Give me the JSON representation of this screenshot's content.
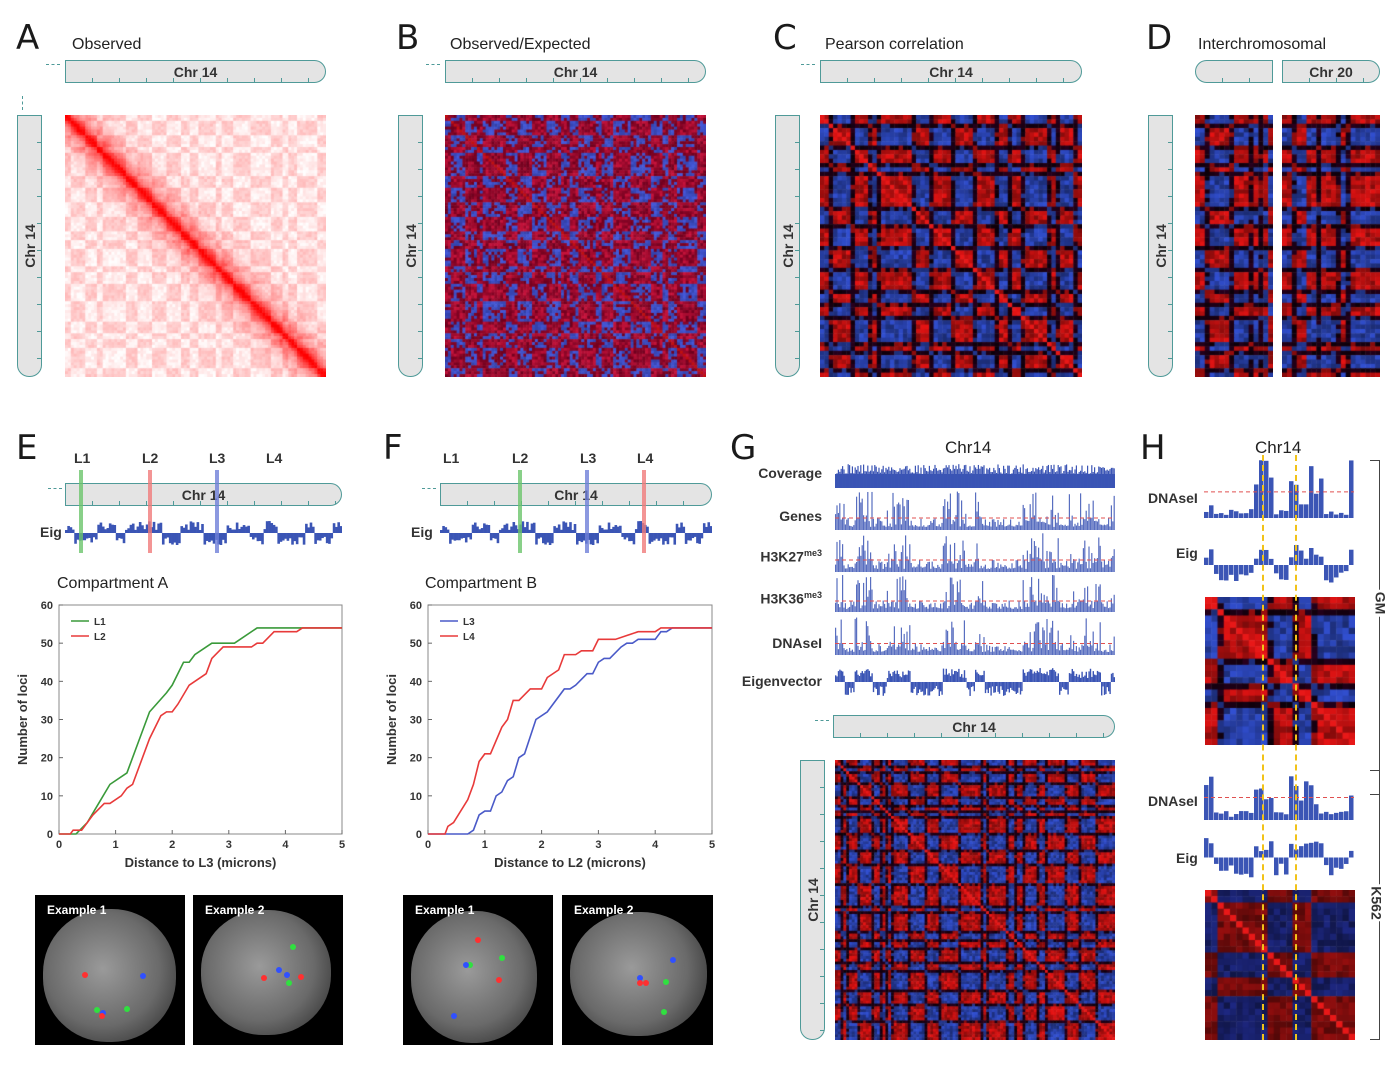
{
  "panels": {
    "A": {
      "letter": "A",
      "title": "Observed",
      "chr_h": "Chr 14",
      "chr_v": "Chr 14"
    },
    "B": {
      "letter": "B",
      "title": "Observed/Expected",
      "chr_h": "Chr 14",
      "chr_v": "Chr 14"
    },
    "C": {
      "letter": "C",
      "title": "Pearson correlation",
      "chr_h": "Chr 14",
      "chr_v": "Chr 14"
    },
    "D": {
      "letter": "D",
      "title": "Interchromosomal",
      "chr_h": "Chr 20",
      "chr_v": "Chr 14"
    },
    "E": {
      "letter": "E",
      "loci": [
        "L1",
        "L2",
        "L3",
        "L4"
      ],
      "chr_h": "Chr 14",
      "eig_label": "Eig",
      "subtitle": "Compartment A",
      "examples": [
        "Example 1",
        "Example 2"
      ]
    },
    "F": {
      "letter": "F",
      "loci": [
        "L1",
        "L2",
        "L3",
        "L4"
      ],
      "chr_h": "Chr 14",
      "eig_label": "Eig",
      "subtitle": "Compartment B",
      "examples": [
        "Example 1",
        "Example 2"
      ]
    },
    "G": {
      "letter": "G",
      "title": "Chr14",
      "tracks": [
        "Coverage",
        "Genes",
        "H3K27",
        "H3K36",
        "DNAseI",
        "Eigenvector"
      ],
      "superscript": "me3",
      "chr_h": "Chr 14",
      "chr_v": "Chr 14"
    },
    "H": {
      "letter": "H",
      "title": "Chr14",
      "track_labels": [
        "DNAseI",
        "Eig",
        "DNAseI",
        "Eig"
      ],
      "cell_lines": [
        "GM",
        "K562"
      ]
    }
  },
  "colors": {
    "locus_green": "#6cc46c",
    "locus_red": "#f07a7a",
    "locus_blue": "#6f7fd8",
    "track_blue": "#3b55b5",
    "heat_red": "#e01818",
    "heat_blue": "#3a5ad0",
    "highlight_yellow": "#f2c318",
    "chr_outline": "#4f9a98"
  },
  "chart_data": [
    {
      "type": "line",
      "panel": "E",
      "xlabel": "Distance to L3 (microns)",
      "ylabel": "Number of loci",
      "xlim": [
        0,
        5
      ],
      "ylim": [
        0,
        60
      ],
      "xticks": [
        0,
        1,
        2,
        3,
        4,
        5
      ],
      "yticks": [
        0,
        10,
        20,
        30,
        40,
        50,
        60
      ],
      "legend": "top-left",
      "series": [
        {
          "name": "L1",
          "color": "#3a9a3a",
          "x": [
            0,
            0.3,
            0.5,
            0.7,
            0.9,
            1.2,
            1.4,
            1.6,
            1.9,
            2.0,
            2.2,
            2.3,
            2.4,
            2.7,
            3.1,
            3.5,
            5
          ],
          "y": [
            0,
            0,
            3,
            8,
            13,
            16,
            24,
            32,
            37,
            39,
            45,
            45,
            47,
            50,
            50,
            54,
            54
          ]
        },
        {
          "name": "L2",
          "color": "#e83a3a",
          "x": [
            0,
            0.2,
            0.25,
            0.4,
            0.6,
            0.8,
            0.9,
            1.1,
            1.2,
            1.3,
            1.6,
            1.8,
            1.9,
            2.0,
            2.1,
            2.3,
            2.6,
            2.7,
            2.9,
            3.4,
            3.5,
            3.6,
            3.8,
            4.2,
            4.3,
            5
          ],
          "y": [
            0,
            0,
            1,
            1,
            5,
            8,
            8,
            10,
            12,
            13,
            25,
            31,
            32,
            32,
            34,
            39,
            42,
            46,
            49,
            49,
            50,
            50,
            53,
            53,
            54,
            54
          ]
        }
      ]
    },
    {
      "type": "line",
      "panel": "F",
      "xlabel": "Distance to L2 (microns)",
      "ylabel": "Number of loci",
      "xlim": [
        0,
        5
      ],
      "ylim": [
        0,
        60
      ],
      "xticks": [
        0,
        1,
        2,
        3,
        4,
        5
      ],
      "yticks": [
        0,
        10,
        20,
        30,
        40,
        50,
        60
      ],
      "legend": "top-left",
      "series": [
        {
          "name": "L3",
          "color": "#4a5ac8",
          "x": [
            0,
            0.7,
            0.8,
            0.9,
            1.0,
            1.1,
            1.2,
            1.3,
            1.4,
            1.5,
            1.6,
            1.7,
            1.9,
            2.1,
            2.4,
            2.5,
            2.6,
            2.8,
            2.9,
            3.0,
            3.1,
            3.2,
            3.4,
            3.5,
            3.6,
            3.7,
            4.0,
            4.1,
            4.2,
            4.3,
            5
          ],
          "y": [
            0,
            0,
            1,
            5,
            6,
            6,
            10,
            11,
            14,
            15,
            20,
            21,
            30,
            32,
            38,
            38,
            39,
            42,
            42,
            45,
            46,
            46,
            49,
            50,
            50,
            51,
            51,
            53,
            53,
            54,
            54
          ]
        },
        {
          "name": "L4",
          "color": "#e83a3a",
          "x": [
            0,
            0.3,
            0.35,
            0.45,
            0.7,
            0.8,
            0.9,
            1.0,
            1.1,
            1.3,
            1.4,
            1.5,
            1.6,
            1.8,
            2.0,
            2.1,
            2.3,
            2.4,
            2.6,
            2.7,
            2.9,
            3.0,
            3.3,
            3.5,
            3.7,
            4.0,
            4.1,
            5
          ],
          "y": [
            0,
            0,
            2,
            3,
            9,
            13,
            19,
            21,
            21,
            28,
            30,
            35,
            35,
            38,
            38,
            41,
            43,
            47,
            47,
            48,
            48,
            51,
            51,
            52,
            53,
            53,
            54,
            54
          ]
        }
      ]
    }
  ]
}
